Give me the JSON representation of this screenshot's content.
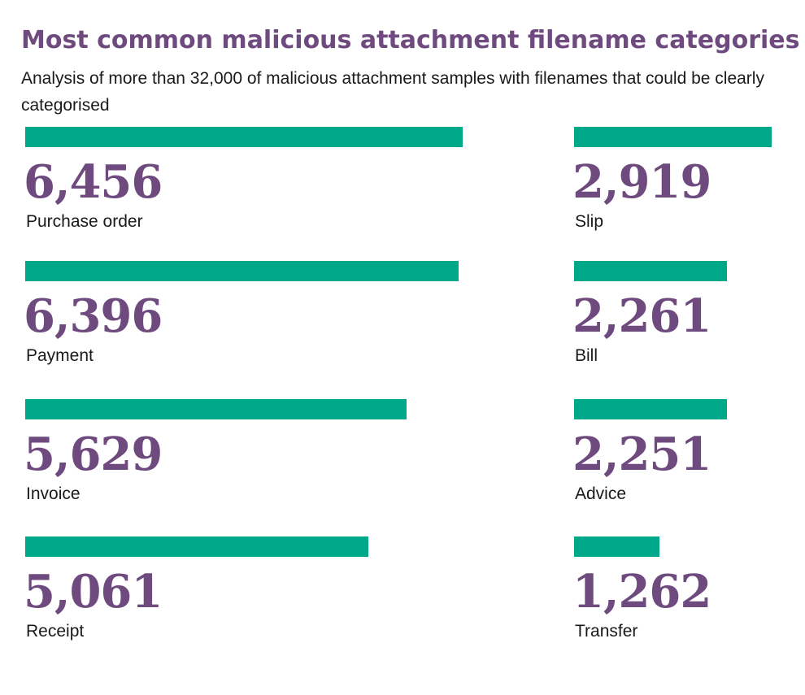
{
  "title": "Most common malicious attachment filename categories",
  "subtitle": "Analysis of more than 32,000 of malicious attachment samples with filenames that could be clearly categorised",
  "colors": {
    "title": "#6e4a7e",
    "bar": "#00a88a",
    "value": "#6e4a7e",
    "label": "#1a1a1a"
  },
  "chart_data": {
    "type": "bar",
    "title": "Most common malicious attachment filename categories",
    "subtitle": "Analysis of more than 32,000 of malicious attachment samples with filenames that could be clearly categorised",
    "columns": [
      {
        "categories": [
          "Purchase order",
          "Payment",
          "Invoice",
          "Receipt"
        ],
        "values": [
          6456,
          6396,
          5629,
          5061
        ],
        "value_labels": [
          "6,456",
          "6,396",
          "5,629",
          "5,061"
        ]
      },
      {
        "categories": [
          "Slip",
          "Bill",
          "Advice",
          "Transfer"
        ],
        "values": [
          2919,
          2261,
          2251,
          1262
        ],
        "value_labels": [
          "2,919",
          "2,261",
          "2,251",
          "1,262"
        ]
      }
    ],
    "orientation": "horizontal",
    "grid": false,
    "legend": "none"
  }
}
